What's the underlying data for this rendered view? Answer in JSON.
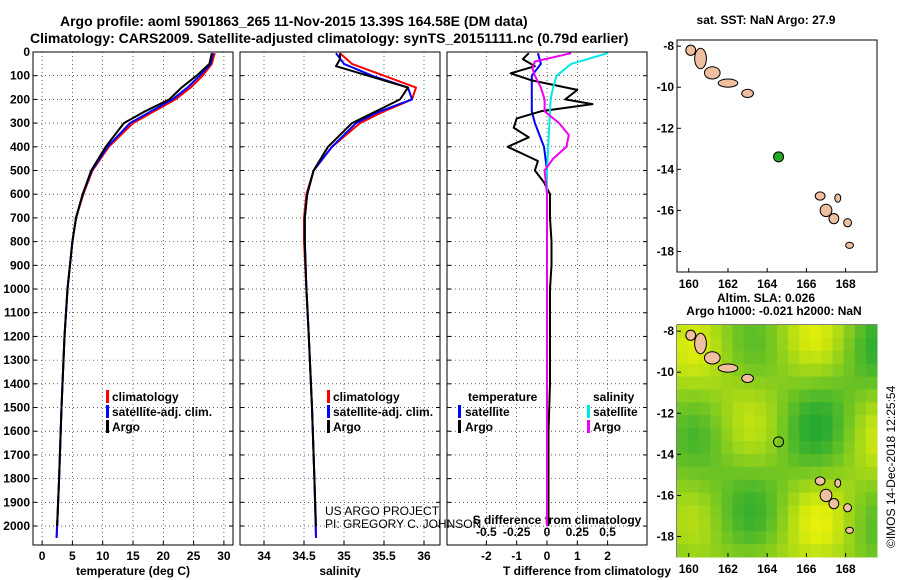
{
  "title": {
    "line1": "Argo profile: aoml 5901863_265 11-Nov-2015 13.39S 164.58E (DM data)",
    "line2": "Climatology: CARS2009. Satellite-adjusted climatology: synTS_20151111.nc (0.79d earlier)"
  },
  "colors": {
    "climatology": "#ff0000",
    "satellite": "#0000ff",
    "argo": "#000000",
    "sal_diff_satellite": "#00e8e8",
    "sal_diff_argo": "#ee00ee",
    "land": "#f0bfa0",
    "map_float": "#22aa22"
  },
  "legend": {
    "climatology": "climatology",
    "satellite_adj": "satellite-adj. clim.",
    "argo": "Argo",
    "diff_temperature_head": "temperature",
    "diff_salinity_head": "salinity",
    "diff_satellite": "satellite",
    "diff_argo": "Argo"
  },
  "credits": {
    "project": "US ARGO PROJECT",
    "pi": "PI: GREGORY C. JOHNSON",
    "imos": "©IMOS 14-Dec-2018 12:25:54"
  },
  "chart_data": [
    {
      "type": "line",
      "panel": "temperature",
      "xlabel": "temperature (deg C)",
      "xlim": [
        -1.5,
        31.5
      ],
      "xticks": [
        "0",
        "5",
        "10",
        "15",
        "20",
        "25",
        "30"
      ],
      "ylim": [
        2080,
        0
      ],
      "yticks": [
        "0",
        "100",
        "200",
        "300",
        "400",
        "500",
        "600",
        "700",
        "800",
        "900",
        "1000",
        "1100",
        "1200",
        "1300",
        "1400",
        "1500",
        "1600",
        "1700",
        "1800",
        "1900",
        "2000"
      ],
      "grid": true,
      "series": [
        {
          "name": "climatology",
          "depth": [
            5,
            50,
            100,
            150,
            200,
            250,
            300,
            400,
            500,
            600,
            700,
            800,
            1000,
            1200,
            1500,
            1800,
            2050
          ],
          "values": [
            28.5,
            28.0,
            26.5,
            24.5,
            22.0,
            18.5,
            15.0,
            11.0,
            8.3,
            6.8,
            5.6,
            5.0,
            4.2,
            3.7,
            3.2,
            2.8,
            2.4
          ]
        },
        {
          "name": "satellite-adj. clim.",
          "depth": [
            5,
            50,
            100,
            150,
            200,
            250,
            300,
            400,
            500,
            600,
            700,
            800,
            1000,
            1200,
            1500,
            1800,
            2050
          ],
          "values": [
            28.2,
            27.8,
            26.0,
            24.0,
            21.5,
            18.0,
            14.5,
            10.8,
            8.2,
            6.7,
            5.6,
            5.0,
            4.2,
            3.7,
            3.2,
            2.8,
            2.4
          ]
        },
        {
          "name": "Argo",
          "depth": [
            5,
            50,
            100,
            150,
            200,
            250,
            300,
            400,
            500,
            600,
            700,
            800,
            1000,
            1200,
            1500,
            1800,
            2000
          ],
          "values": [
            28.0,
            27.6,
            25.5,
            23.0,
            21.0,
            17.0,
            13.5,
            10.5,
            8.1,
            6.7,
            5.6,
            5.0,
            4.2,
            3.7,
            3.2,
            2.8,
            2.5
          ]
        }
      ]
    },
    {
      "type": "line",
      "panel": "salinity",
      "xlabel": "salinity",
      "xlim": [
        33.7,
        36.2
      ],
      "xticks": [
        "34",
        "34.5",
        "35",
        "35.5",
        "36"
      ],
      "ylim": [
        2080,
        0
      ],
      "grid": true,
      "series": [
        {
          "name": "climatology",
          "depth": [
            5,
            50,
            100,
            150,
            200,
            250,
            300,
            400,
            500,
            600,
            700,
            800,
            1000,
            1200,
            1500,
            1800,
            2050
          ],
          "values": [
            34.95,
            35.1,
            35.5,
            35.9,
            35.85,
            35.5,
            35.2,
            34.85,
            34.62,
            34.53,
            34.5,
            34.5,
            34.53,
            34.56,
            34.6,
            34.63,
            34.65
          ]
        },
        {
          "name": "satellite-adj. clim.",
          "depth": [
            5,
            50,
            100,
            150,
            200,
            250,
            300,
            400,
            500,
            600,
            700,
            800,
            1000,
            1200,
            1500,
            1800,
            2050
          ],
          "values": [
            34.9,
            35.0,
            35.35,
            35.8,
            35.85,
            35.45,
            35.15,
            34.85,
            34.62,
            34.54,
            34.51,
            34.51,
            34.53,
            34.56,
            34.6,
            34.63,
            34.65
          ]
        },
        {
          "name": "Argo",
          "depth": [
            5,
            30,
            60,
            100,
            150,
            200,
            250,
            300,
            400,
            500,
            600,
            700,
            800,
            1000,
            1200,
            1500,
            1800,
            2000
          ],
          "values": [
            34.95,
            34.95,
            34.9,
            35.3,
            35.8,
            35.7,
            35.4,
            35.1,
            34.8,
            34.62,
            34.54,
            34.51,
            34.51,
            34.53,
            34.56,
            34.6,
            34.63,
            34.65
          ]
        }
      ]
    },
    {
      "type": "line",
      "panel": "difference",
      "xlabel": "T difference from climatology",
      "xlabel_top": "S difference from climatology",
      "xlim": [
        -3.3,
        3.3
      ],
      "xticks": [
        "-2",
        "-1",
        "0",
        "1",
        "2"
      ],
      "xticks_top": [
        "-0.5",
        "-0.25",
        "0",
        "0.25",
        "0.5"
      ],
      "ylim": [
        2080,
        0
      ],
      "grid": true,
      "series": [
        {
          "name": "temperature satellite",
          "depth": [
            5,
            50,
            100,
            150,
            200,
            250,
            300,
            400,
            500,
            700,
            1000,
            1500,
            2000
          ],
          "values": [
            -0.3,
            -0.2,
            -0.5,
            -0.5,
            -0.5,
            -0.5,
            -0.4,
            -0.1,
            0,
            0,
            0,
            0,
            0
          ]
        },
        {
          "name": "temperature Argo",
          "depth": [
            5,
            30,
            60,
            90,
            120,
            160,
            200,
            220,
            250,
            280,
            320,
            360,
            400,
            430,
            460,
            500,
            550,
            600,
            700,
            800,
            900,
            1000,
            1200,
            1400,
            1600,
            1800,
            2000
          ],
          "values": [
            -0.6,
            -0.8,
            -0.4,
            -1.2,
            -0.5,
            1.0,
            0.6,
            1.5,
            -0.2,
            -1.0,
            -1.1,
            -0.6,
            -1.3,
            -0.8,
            -0.3,
            -0.4,
            -0.1,
            0.1,
            0.1,
            0.15,
            0.15,
            0.1,
            0.1,
            0.1,
            0.05,
            0.05,
            0.05
          ]
        },
        {
          "name": "salinity satellite",
          "depth": [
            5,
            50,
            100,
            150,
            200,
            300,
            500,
            1000,
            1500,
            2000
          ],
          "values": [
            0.5,
            0.2,
            0.08,
            0.05,
            0.03,
            0.02,
            0.0,
            0.0,
            0.0,
            0.0
          ]
        },
        {
          "name": "salinity Argo",
          "depth": [
            5,
            40,
            70,
            100,
            150,
            200,
            250,
            300,
            350,
            400,
            450,
            500,
            600,
            800,
            1000,
            1500,
            2000
          ],
          "values": [
            0.2,
            -0.1,
            -0.12,
            -0.1,
            -0.05,
            -0.02,
            -0.02,
            0.1,
            0.18,
            0.16,
            0.05,
            -0.02,
            0.0,
            0.0,
            0.0,
            0.0,
            0.0
          ]
        }
      ]
    },
    {
      "type": "scatter",
      "panel": "sst_map",
      "title": "sat. SST: NaN Argo: 27.9",
      "xlim": [
        159.4,
        169.6
      ],
      "ylim": [
        -19,
        -7.7
      ],
      "xticks": [
        "160",
        "162",
        "164",
        "166",
        "168"
      ],
      "yticks": [
        "-8",
        "-10",
        "-12",
        "-14",
        "-16",
        "-18"
      ],
      "float": {
        "lon": 164.58,
        "lat": -13.39
      }
    },
    {
      "type": "heatmap",
      "panel": "sla_map",
      "title_line1": "Altim. SLA: 0.026",
      "title_line2": "Argo h1000: -0.021 h2000: NaN",
      "xlim": [
        159.4,
        169.6
      ],
      "ylim": [
        -19,
        -7.7
      ],
      "xticks": [
        "160",
        "162",
        "164",
        "166",
        "168"
      ],
      "yticks": [
        "-8",
        "-10",
        "-12",
        "-14",
        "-16",
        "-18"
      ],
      "float": {
        "lon": 164.58,
        "lat": -13.39
      }
    }
  ]
}
